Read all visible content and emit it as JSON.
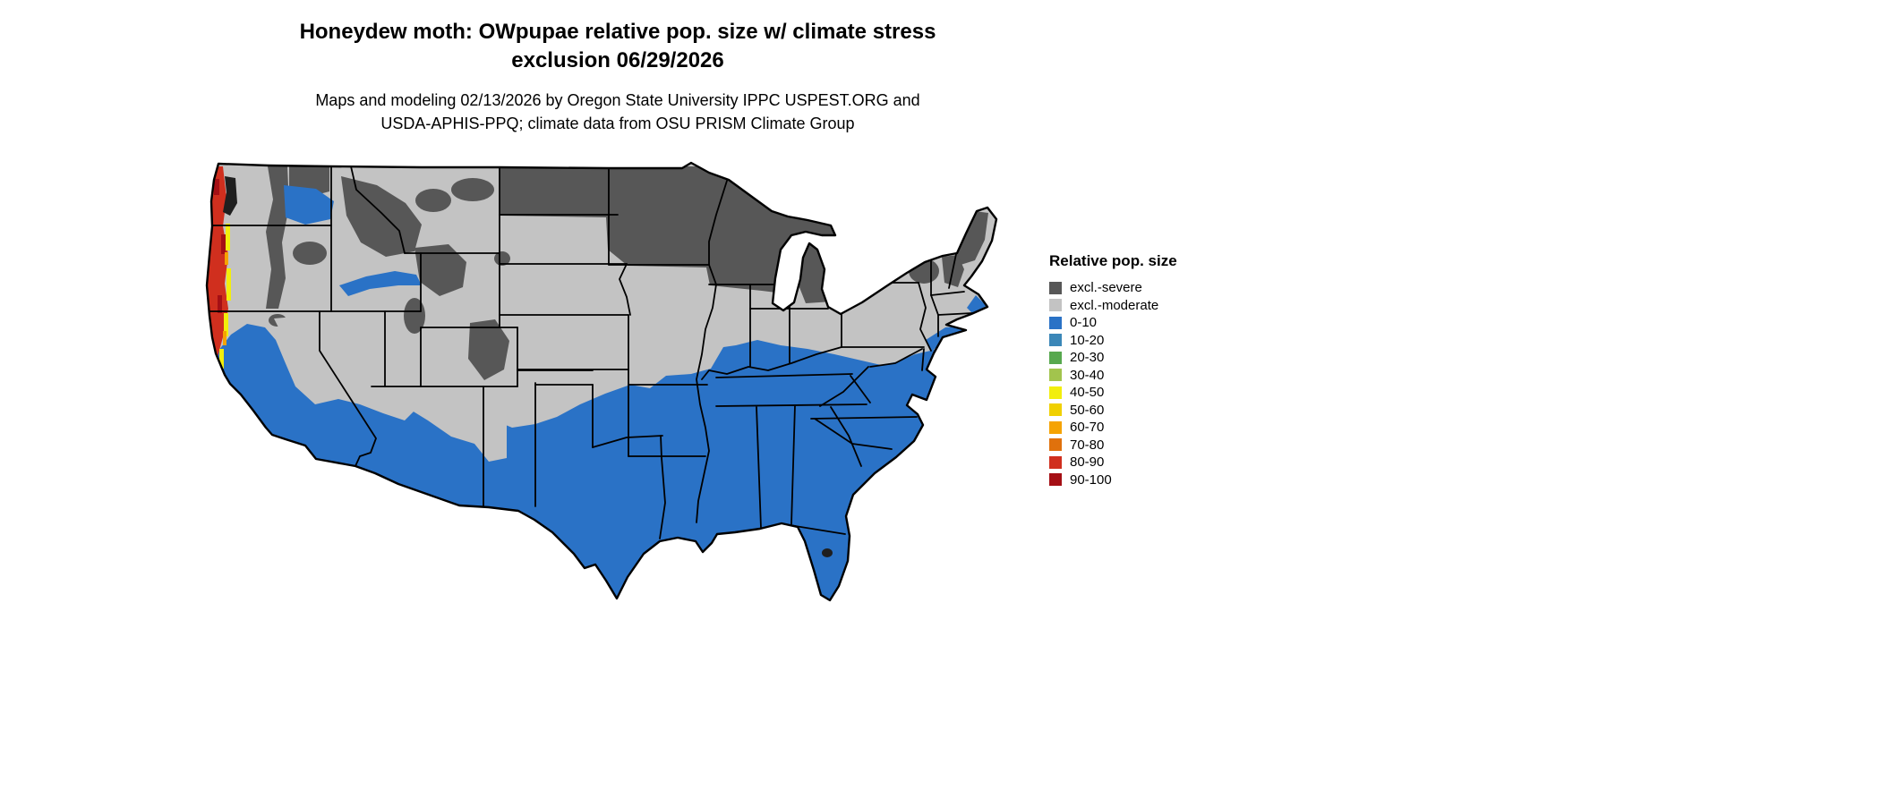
{
  "title": {
    "line1": "Honeydew moth: OWpupae relative pop. size w/ climate stress",
    "line2": "exclusion 06/29/2026"
  },
  "subtitle": {
    "line1": "Maps and modeling 02/13/2026 by Oregon State University IPPC USPEST.ORG and",
    "line2": "USDA-APHIS-PPQ; climate data from OSU PRISM Climate Group"
  },
  "legend": {
    "title": "Relative pop. size",
    "items": [
      {
        "label": "excl.-severe",
        "color": "#575757"
      },
      {
        "label": "excl.-moderate",
        "color": "#c3c3c3"
      },
      {
        "label": "0-10",
        "color": "#2a72c6"
      },
      {
        "label": "10-20",
        "color": "#3b87b8"
      },
      {
        "label": "20-30",
        "color": "#57a84e"
      },
      {
        "label": "30-40",
        "color": "#a2c44d"
      },
      {
        "label": "40-50",
        "color": "#f2ee0c"
      },
      {
        "label": "50-60",
        "color": "#f0d000"
      },
      {
        "label": "60-70",
        "color": "#f5a302"
      },
      {
        "label": "70-80",
        "color": "#e0710c"
      },
      {
        "label": "80-90",
        "color": "#d02f1e"
      },
      {
        "label": "90-100",
        "color": "#a50f15"
      }
    ]
  },
  "map": {
    "region": "Continental United States",
    "accents": {
      "water_dark": "#1f1f1f",
      "border": "#000000"
    }
  }
}
